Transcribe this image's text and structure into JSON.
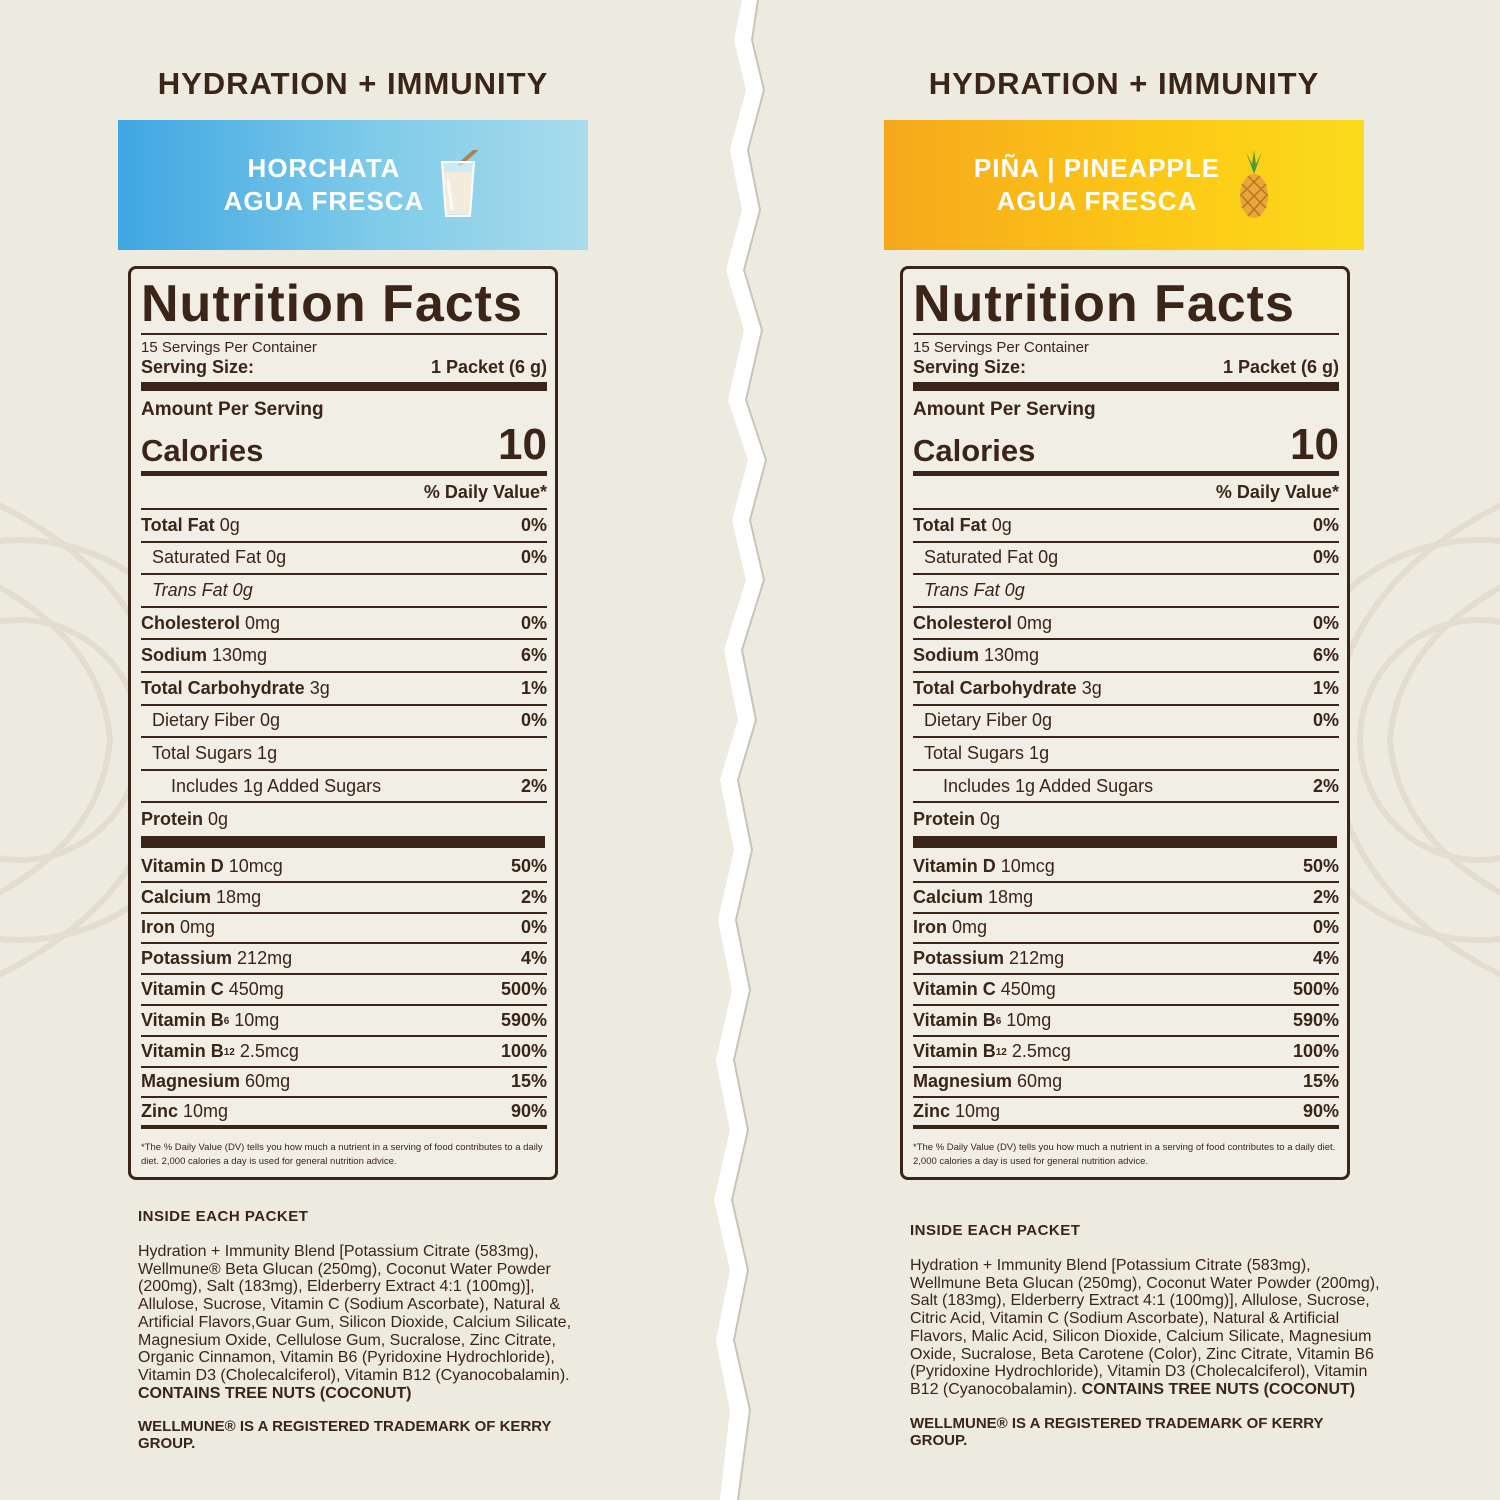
{
  "colors": {
    "background": "#edeae0",
    "text": "#3b2519",
    "blue_banner": "#3fa6e2",
    "yellow_banner": "#fcc716"
  },
  "panels": [
    {
      "title": "HYDRATION + IMMUNITY",
      "flavor_line1": "HORCHATA",
      "flavor_line2": "AGUA FRESCA",
      "flavor_icon": "glass-of-horchata-icon",
      "nf_title": "Nutrition Facts",
      "servings": "15 Servings Per Container",
      "serving_size_label": "Serving Size:",
      "serving_size_value": "1 Packet (6 g)",
      "amount_per_serving": "Amount Per Serving",
      "calories_label": "Calories",
      "calories_value": "10",
      "dv_header": "% Daily Value*",
      "nutrients": [
        {
          "bold": "Total Fat",
          "amt": "0g",
          "pct": "0%"
        },
        {
          "bold": "",
          "amt": "Saturated Fat  0g",
          "pct": "0%"
        },
        {
          "bold": "",
          "amt": "Trans Fat  0g",
          "pct": ""
        },
        {
          "bold": "Cholesterol",
          "amt": "0mg",
          "pct": "0%"
        },
        {
          "bold": "Sodium",
          "amt": "130mg",
          "pct": "6%"
        },
        {
          "bold": "Total Carbohydrate",
          "amt": "3g",
          "pct": "1%"
        },
        {
          "bold": "",
          "amt": "Dietary Fiber 0g",
          "pct": "0%"
        },
        {
          "bold": "",
          "amt": "Total Sugars 1g",
          "pct": ""
        },
        {
          "bold": "",
          "amt": "Includes 1g Added Sugars",
          "pct": "2%"
        },
        {
          "bold": "Protein",
          "amt": "0g",
          "pct": ""
        }
      ],
      "vitamins": [
        {
          "name": "Vitamin D",
          "sub": "",
          "amt": "10mcg",
          "pct": "50%"
        },
        {
          "name": "Calcium",
          "sub": "",
          "amt": "18mg",
          "pct": "2%"
        },
        {
          "name": "Iron",
          "sub": "",
          "amt": "0mg",
          "pct": "0%"
        },
        {
          "name": "Potassium",
          "sub": "",
          "amt": "212mg",
          "pct": "4%"
        },
        {
          "name": "Vitamin C",
          "sub": "",
          "amt": "450mg",
          "pct": "500%"
        },
        {
          "name": "Vitamin B",
          "sub": "6",
          "amt": "10mg",
          "pct": "590%"
        },
        {
          "name": "Vitamin B",
          "sub": "12",
          "amt": "2.5mcg",
          "pct": "100%"
        },
        {
          "name": "Magnesium",
          "sub": "",
          "amt": "60mg",
          "pct": "15%"
        },
        {
          "name": "Zinc",
          "sub": "",
          "amt": "10mg",
          "pct": "90%"
        }
      ],
      "footnote": "*The % Daily Value (DV) tells you how much a nutrient in a serving of food contributes to a daily diet. 2,000 calories a day is used for general nutrition advice.",
      "inside_heading": "INSIDE EACH PACKET",
      "ingredients": "Hydration + Immunity Blend [Potassium Citrate (583mg), Wellmune® Beta Glucan (250mg), Coconut Water Powder (200mg), Salt (183mg), Elderberry Extract 4:1 (100mg)], Allulose, Sucrose, Vitamin C (Sodium Ascorbate), Natural & Artificial Flavors,Guar Gum, Silicon Dioxide, Calcium Silicate, Magnesium Oxide, Cellulose Gum, Sucralose, Zinc Citrate, Organic Cinnamon, Vitamin B6 (Pyridoxine Hydrochloride), Vitamin D3 (Cholecalciferol), Vitamin B12 (Cyanocobalamin).",
      "contains": "CONTAINS TREE NUTS (COCONUT)",
      "trademark": "WELLMUNE® IS A REGISTERED TRADEMARK OF KERRY GROUP."
    },
    {
      "title": "HYDRATION + IMMUNITY",
      "flavor_line1": "PIÑA | PINEAPPLE",
      "flavor_line2": "AGUA FRESCA",
      "flavor_icon": "pineapple-icon",
      "nf_title": "Nutrition Facts",
      "servings": "15 Servings Per Container",
      "serving_size_label": "Serving Size:",
      "serving_size_value": "1 Packet (6 g)",
      "amount_per_serving": "Amount Per Serving",
      "calories_label": "Calories",
      "calories_value": "10",
      "dv_header": "% Daily Value*",
      "nutrients": [
        {
          "bold": "Total Fat",
          "amt": "0g",
          "pct": "0%"
        },
        {
          "bold": "",
          "amt": "Saturated Fat  0g",
          "pct": "0%"
        },
        {
          "bold": "",
          "amt": "Trans Fat  0g",
          "pct": ""
        },
        {
          "bold": "Cholesterol",
          "amt": "0mg",
          "pct": "0%"
        },
        {
          "bold": "Sodium",
          "amt": "130mg",
          "pct": "6%"
        },
        {
          "bold": "Total Carbohydrate",
          "amt": "3g",
          "pct": "1%"
        },
        {
          "bold": "",
          "amt": "Dietary Fiber 0g",
          "pct": "0%"
        },
        {
          "bold": "",
          "amt": "Total Sugars 1g",
          "pct": ""
        },
        {
          "bold": "",
          "amt": "Includes 1g Added Sugars",
          "pct": "2%"
        },
        {
          "bold": "Protein",
          "amt": "0g",
          "pct": ""
        }
      ],
      "vitamins": [
        {
          "name": "Vitamin D",
          "sub": "",
          "amt": "10mcg",
          "pct": "50%"
        },
        {
          "name": "Calcium",
          "sub": "",
          "amt": "18mg",
          "pct": "2%"
        },
        {
          "name": "Iron",
          "sub": "",
          "amt": "0mg",
          "pct": "0%"
        },
        {
          "name": "Potassium",
          "sub": "",
          "amt": "212mg",
          "pct": "4%"
        },
        {
          "name": "Vitamin C",
          "sub": "",
          "amt": "450mg",
          "pct": "500%"
        },
        {
          "name": "Vitamin B",
          "sub": "6",
          "amt": "10mg",
          "pct": "590%"
        },
        {
          "name": "Vitamin B",
          "sub": "12",
          "amt": "2.5mcg",
          "pct": "100%"
        },
        {
          "name": "Magnesium",
          "sub": "",
          "amt": "60mg",
          "pct": "15%"
        },
        {
          "name": "Zinc",
          "sub": "",
          "amt": "10mg",
          "pct": "90%"
        }
      ],
      "footnote": "*The % Daily Value (DV) tells you how much a nutrient in a serving of food contributes to a daily diet. 2,000 calories a day is used for general nutrition advice.",
      "inside_heading": "INSIDE EACH PACKET",
      "ingredients": "Hydration + Immunity Blend [Potassium Citrate (583mg), Wellmune Beta Glucan (250mg), Coconut Water Powder (200mg), Salt (183mg), Elderberry Extract 4:1 (100mg)], Allulose, Sucrose, Citric Acid, Vitamin C (Sodium Ascorbate), Natural & Artificial Flavors, Malic Acid, Silicon Dioxide, Calcium Silicate, Magnesium Oxide, Sucralose, Beta Carotene (Color), Zinc Citrate, Vitamin B6 (Pyridoxine Hydrochloride), Vitamin D3 (Cholecalciferol), Vitamin B12 (Cyanocobalamin).",
      "contains": "CONTAINS TREE NUTS (COCONUT)",
      "trademark": "WELLMUNE® IS A REGISTERED TRADEMARK OF KERRY GROUP."
    }
  ]
}
